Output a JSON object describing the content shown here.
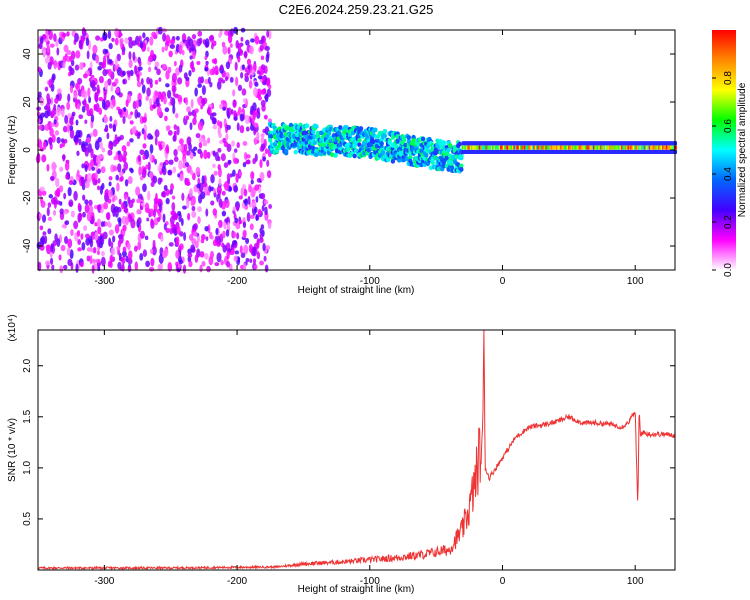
{
  "page_title": "C2E6.2024.259.23.21.G25",
  "chart_data": [
    {
      "type": "heatmap",
      "xlabel": "Height of straight line (km)",
      "ylabel": "Frequency (Hz)",
      "xlim": [
        -350,
        130
      ],
      "ylim": [
        -50,
        50
      ],
      "x_ticks": [
        -300,
        -200,
        -100,
        0,
        100
      ],
      "y_ticks": [
        -40,
        -20,
        0,
        20,
        40
      ],
      "colorbar": {
        "label": "Normalized spectral amplitude",
        "range": [
          0.0,
          1.0
        ],
        "ticks": [
          "0.0",
          "0.2",
          "0.4",
          "0.6",
          "0.8"
        ],
        "tick_values": [
          0.0,
          0.2,
          0.4,
          0.6,
          0.8
        ],
        "colormap": [
          "#ffffff",
          "#ff00ff",
          "#4400ff",
          "#0066ff",
          "#00ffff",
          "#00ff00",
          "#ffff00",
          "#ff8800",
          "#ff0000"
        ]
      },
      "regions": [
        {
          "name": "noise",
          "x_range": [
            -350,
            -175
          ],
          "freq_range": [
            -50,
            50
          ],
          "amplitude": [
            0.05,
            0.25
          ]
        },
        {
          "name": "signal-band",
          "x_range": [
            -175,
            -30
          ],
          "center_freq": [
            [
              -175,
              5
            ],
            [
              -100,
              3
            ],
            [
              -50,
              -2
            ],
            [
              -30,
              -3
            ]
          ],
          "halfwidth": 6,
          "amplitude": [
            0.3,
            0.6
          ]
        },
        {
          "name": "locked-tone",
          "x_range": [
            -30,
            130
          ],
          "center_freq": 1,
          "halfwidth": 3,
          "amplitude": [
            0.5,
            1.0
          ]
        }
      ]
    },
    {
      "type": "line",
      "xlabel": "Height of straight line (km)",
      "ylabel": "SNR (10 * v/v)",
      "y_multiplier": "(x10⁴)",
      "xlim": [
        -350,
        130
      ],
      "ylim": [
        0,
        2.35
      ],
      "x_ticks": [
        -300,
        -200,
        -100,
        0,
        100
      ],
      "y_ticks": [
        "0.5",
        "1.0",
        "1.5",
        "2.0"
      ],
      "y_tick_values": [
        0.5,
        1.0,
        1.5,
        2.0
      ],
      "color": "#ee3333",
      "x": [
        -350,
        -250,
        -170,
        -150,
        -120,
        -100,
        -80,
        -60,
        -40,
        -30,
        -25,
        -20,
        -18,
        -15,
        -14,
        -13,
        -10,
        -5,
        0,
        10,
        20,
        30,
        40,
        50,
        60,
        70,
        80,
        90,
        95,
        100,
        102,
        103,
        104,
        105,
        110,
        120,
        130
      ],
      "y": [
        0.02,
        0.02,
        0.03,
        0.06,
        0.08,
        0.1,
        0.12,
        0.15,
        0.2,
        0.4,
        0.6,
        0.9,
        1.1,
        1.2,
        2.35,
        1.0,
        0.9,
        1.0,
        1.1,
        1.3,
        1.4,
        1.42,
        1.45,
        1.5,
        1.44,
        1.44,
        1.43,
        1.4,
        1.45,
        1.55,
        0.6,
        1.58,
        1.3,
        1.35,
        1.33,
        1.33,
        1.32
      ]
    }
  ]
}
